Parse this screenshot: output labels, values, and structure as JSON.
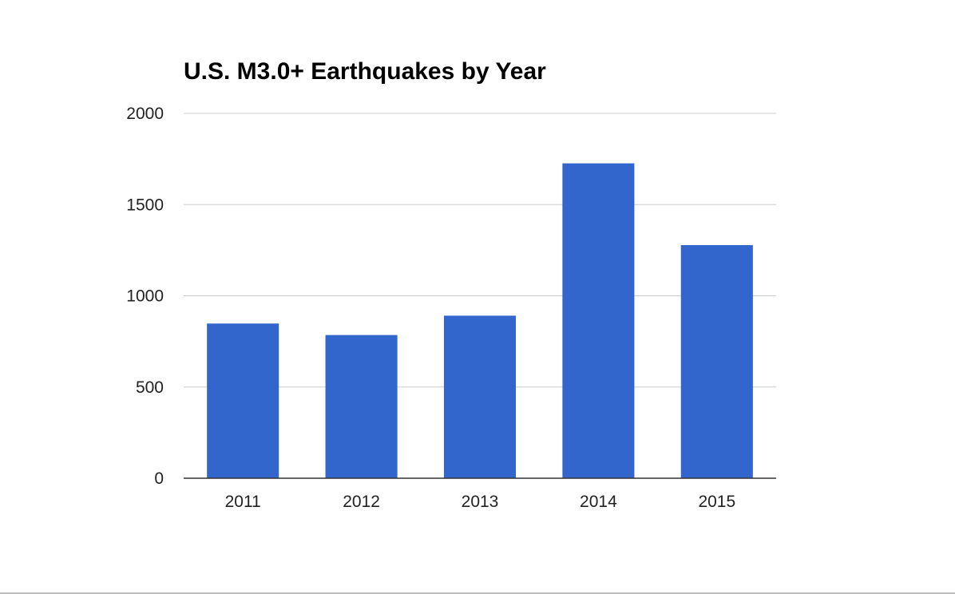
{
  "chart_data": {
    "type": "bar",
    "title": "U.S. M3.0+ Earthquakes by Year",
    "xlabel": "",
    "ylabel": "",
    "categories": [
      "2011",
      "2012",
      "2013",
      "2014",
      "2015"
    ],
    "series": [
      {
        "values": [
          848,
          785,
          891,
          1726,
          1278
        ]
      }
    ],
    "ylim": [
      0,
      2000
    ],
    "yticks": [
      0,
      500,
      1000,
      1500,
      2000
    ],
    "ytick_labels": [
      "0",
      "500",
      "1000",
      "1500",
      "2000"
    ],
    "grid": true,
    "legend": "none",
    "colors": {
      "bar": "#3366cc",
      "grid": "#cccccc",
      "baseline": "#333333"
    }
  }
}
